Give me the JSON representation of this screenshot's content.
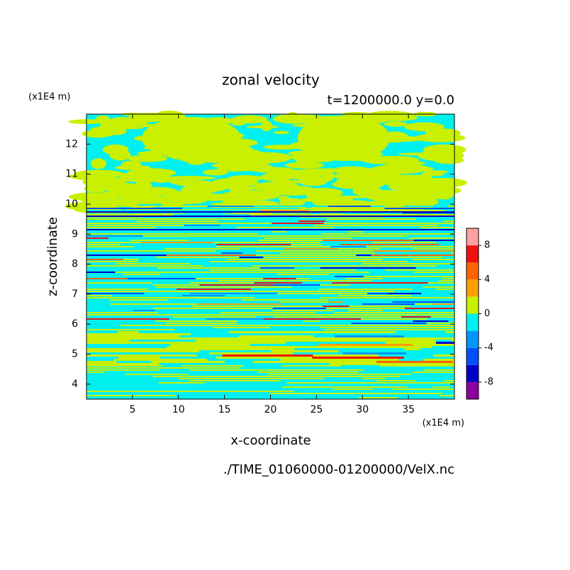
{
  "chart_data": {
    "type": "contour",
    "title": "zonal velocity",
    "subtitle": "t=1200000.0 y=0.0",
    "x_label": "x-coordinate",
    "y_label": "z-coordinate",
    "x_unit": "(x1E4 m)",
    "y_unit": "(x1E4 m)",
    "footer": "./TIME_01060000-01200000/VelX.nc",
    "xlim": [
      0,
      40
    ],
    "xticks": [
      5,
      10,
      15,
      20,
      25,
      30,
      35
    ],
    "ylim": [
      3.5,
      13
    ],
    "yticks": [
      4,
      5,
      6,
      7,
      8,
      9,
      10,
      11,
      12
    ],
    "colorbar": {
      "levels": [
        -10,
        -8,
        -6,
        -4,
        -2,
        0,
        2,
        4,
        6,
        8,
        10
      ],
      "colors": [
        "#8c00a0",
        "#0000c8",
        "#0050ff",
        "#0096ff",
        "#00f0f0",
        "#c8f000",
        "#ffa000",
        "#ff6400",
        "#f01010",
        "#ffa0a0"
      ],
      "ticks": [
        -8,
        -4,
        0,
        4,
        8
      ]
    }
  }
}
